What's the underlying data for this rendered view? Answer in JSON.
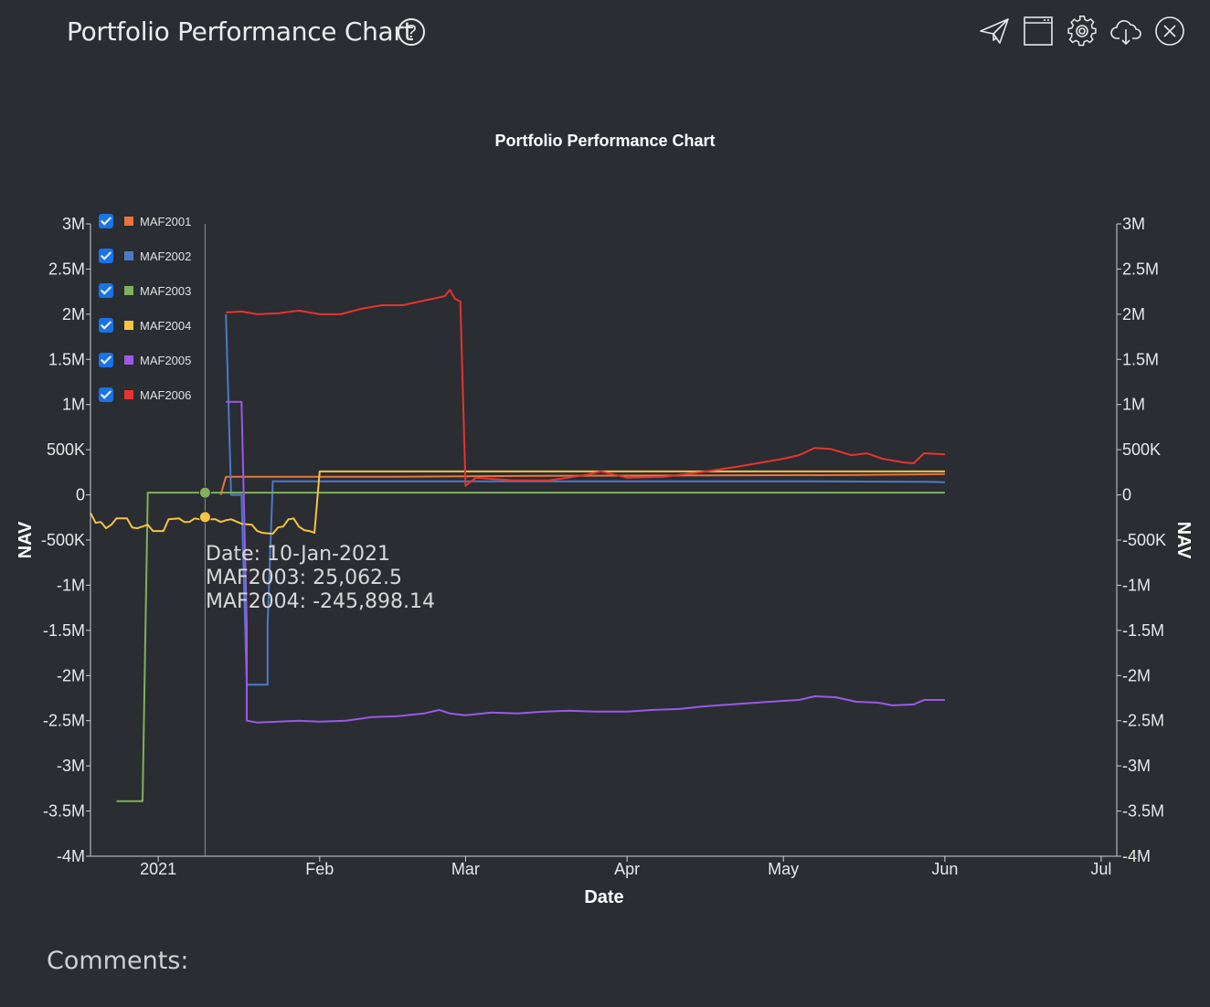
{
  "header": {
    "title": "Portfolio Performance Chart",
    "help_label": "?",
    "tools": [
      {
        "name": "send-icon"
      },
      {
        "name": "window-icon"
      },
      {
        "name": "gear-icon"
      },
      {
        "name": "cloud-download-icon"
      },
      {
        "name": "close-icon"
      }
    ]
  },
  "comments_label": "Comments:",
  "tooltip": {
    "date_line": "Date: 10-Jan-2021",
    "line1": "MAF2003: 25,062.5",
    "line2": "MAF2004: -245,898.14"
  },
  "chart_data": {
    "type": "line",
    "title": "Portfolio Performance Chart",
    "xlabel": "Date",
    "ylabel": "NAV",
    "y2label": "NAV",
    "xlim": [
      "2020-12-19",
      "2021-07-04"
    ],
    "ylim": [
      -4000000,
      3000000
    ],
    "x_ticks": [
      {
        "date": "2021-01-01",
        "label": "2021"
      },
      {
        "date": "2021-02-01",
        "label": "Feb"
      },
      {
        "date": "2021-03-01",
        "label": "Mar"
      },
      {
        "date": "2021-04-01",
        "label": "Apr"
      },
      {
        "date": "2021-05-01",
        "label": "May"
      },
      {
        "date": "2021-06-01",
        "label": "Jun"
      },
      {
        "date": "2021-07-01",
        "label": "Jul"
      }
    ],
    "y_ticks": [
      {
        "value": 3000000,
        "label": "3M"
      },
      {
        "value": 2500000,
        "label": "2.5M"
      },
      {
        "value": 2000000,
        "label": "2M"
      },
      {
        "value": 1500000,
        "label": "1.5M"
      },
      {
        "value": 1000000,
        "label": "1M"
      },
      {
        "value": 500000,
        "label": "500K"
      },
      {
        "value": 0,
        "label": "0"
      },
      {
        "value": -500000,
        "label": "-500K"
      },
      {
        "value": -1000000,
        "label": "-1M"
      },
      {
        "value": -1500000,
        "label": "-1.5M"
      },
      {
        "value": -2000000,
        "label": "-2M"
      },
      {
        "value": -2500000,
        "label": "-2.5M"
      },
      {
        "value": -3000000,
        "label": "-3M"
      },
      {
        "value": -3500000,
        "label": "-3.5M"
      },
      {
        "value": -4000000,
        "label": "-4M"
      }
    ],
    "hover_date": "2021-01-10",
    "series": [
      {
        "name": "MAF2001",
        "color": "#e8743b",
        "points": [
          [
            "2021-01-13",
            0
          ],
          [
            "2021-01-14",
            200000
          ],
          [
            "2021-02-15",
            200000
          ],
          [
            "2021-03-15",
            210000
          ],
          [
            "2021-04-15",
            215000
          ],
          [
            "2021-05-15",
            220000
          ],
          [
            "2021-06-01",
            230000
          ]
        ]
      },
      {
        "name": "MAF2002",
        "color": "#4e79c7",
        "points": [
          [
            "2021-01-14",
            2000000
          ],
          [
            "2021-01-15",
            0
          ],
          [
            "2021-01-17",
            0
          ],
          [
            "2021-01-18",
            -2100000
          ],
          [
            "2021-01-22",
            -2100000
          ],
          [
            "2021-01-22",
            -1450000
          ],
          [
            "2021-01-23",
            150000
          ],
          [
            "2021-03-01",
            150000
          ],
          [
            "2021-04-01",
            150000
          ],
          [
            "2021-05-01",
            150000
          ],
          [
            "2021-05-28",
            145000
          ],
          [
            "2021-06-01",
            140000
          ]
        ]
      },
      {
        "name": "MAF2003",
        "color": "#7fb05d",
        "points": [
          [
            "2020-12-24",
            -3390000
          ],
          [
            "2020-12-29",
            -3390000
          ],
          [
            "2020-12-30",
            25062.5
          ],
          [
            "2021-01-10",
            25062.5
          ],
          [
            "2021-02-01",
            25000
          ],
          [
            "2021-03-01",
            25000
          ],
          [
            "2021-04-01",
            25000
          ],
          [
            "2021-05-01",
            25000
          ],
          [
            "2021-06-01",
            25000
          ]
        ]
      },
      {
        "name": "MAF2004",
        "color": "#f7c343",
        "points": [
          [
            "2020-12-19",
            -200000
          ],
          [
            "2020-12-20",
            -310000
          ],
          [
            "2020-12-21",
            -300000
          ],
          [
            "2020-12-22",
            -370000
          ],
          [
            "2020-12-23",
            -330000
          ],
          [
            "2020-12-24",
            -260000
          ],
          [
            "2020-12-26",
            -260000
          ],
          [
            "2020-12-27",
            -360000
          ],
          [
            "2020-12-28",
            -370000
          ],
          [
            "2020-12-29",
            -350000
          ],
          [
            "2020-12-30",
            -330000
          ],
          [
            "2020-12-31",
            -400000
          ],
          [
            "2021-01-02",
            -400000
          ],
          [
            "2021-01-03",
            -270000
          ],
          [
            "2021-01-05",
            -260000
          ],
          [
            "2021-01-06",
            -300000
          ],
          [
            "2021-01-07",
            -300000
          ],
          [
            "2021-01-08",
            -260000
          ],
          [
            "2021-01-09",
            -270000
          ],
          [
            "2021-01-10",
            -245898.14
          ],
          [
            "2021-01-11",
            -270000
          ],
          [
            "2021-01-12",
            -270000
          ],
          [
            "2021-01-13",
            -300000
          ],
          [
            "2021-01-14",
            -280000
          ],
          [
            "2021-01-15",
            -270000
          ],
          [
            "2021-01-17",
            -320000
          ],
          [
            "2021-01-19",
            -330000
          ],
          [
            "2021-01-20",
            -400000
          ],
          [
            "2021-01-21",
            -420000
          ],
          [
            "2021-01-23",
            -430000
          ],
          [
            "2021-01-24",
            -360000
          ],
          [
            "2021-01-25",
            -350000
          ],
          [
            "2021-01-26",
            -270000
          ],
          [
            "2021-01-27",
            -260000
          ],
          [
            "2021-01-28",
            -350000
          ],
          [
            "2021-01-29",
            -390000
          ],
          [
            "2021-01-30",
            -400000
          ],
          [
            "2021-01-31",
            -420000
          ],
          [
            "2021-02-01",
            260000
          ],
          [
            "2021-03-01",
            260000
          ],
          [
            "2021-04-01",
            260000
          ],
          [
            "2021-05-01",
            260000
          ],
          [
            "2021-06-01",
            260000
          ]
        ]
      },
      {
        "name": "MAF2005",
        "color": "#9b59e8",
        "points": [
          [
            "2021-01-14",
            1030000
          ],
          [
            "2021-01-17",
            1030000
          ],
          [
            "2021-01-18",
            -1450000
          ],
          [
            "2021-01-18",
            -2500000
          ],
          [
            "2021-01-20",
            -2520000
          ],
          [
            "2021-01-24",
            -2510000
          ],
          [
            "2021-01-28",
            -2500000
          ],
          [
            "2021-02-01",
            -2510000
          ],
          [
            "2021-02-06",
            -2500000
          ],
          [
            "2021-02-11",
            -2460000
          ],
          [
            "2021-02-16",
            -2450000
          ],
          [
            "2021-02-21",
            -2420000
          ],
          [
            "2021-02-24",
            -2380000
          ],
          [
            "2021-02-26",
            -2420000
          ],
          [
            "2021-03-01",
            -2440000
          ],
          [
            "2021-03-06",
            -2410000
          ],
          [
            "2021-03-11",
            -2420000
          ],
          [
            "2021-03-16",
            -2400000
          ],
          [
            "2021-03-21",
            -2390000
          ],
          [
            "2021-03-26",
            -2400000
          ],
          [
            "2021-04-01",
            -2400000
          ],
          [
            "2021-04-06",
            -2380000
          ],
          [
            "2021-04-11",
            -2370000
          ],
          [
            "2021-04-16",
            -2340000
          ],
          [
            "2021-04-21",
            -2320000
          ],
          [
            "2021-04-26",
            -2300000
          ],
          [
            "2021-05-01",
            -2280000
          ],
          [
            "2021-05-04",
            -2270000
          ],
          [
            "2021-05-07",
            -2230000
          ],
          [
            "2021-05-11",
            -2240000
          ],
          [
            "2021-05-15",
            -2290000
          ],
          [
            "2021-05-19",
            -2300000
          ],
          [
            "2021-05-22",
            -2330000
          ],
          [
            "2021-05-26",
            -2320000
          ],
          [
            "2021-05-28",
            -2270000
          ],
          [
            "2021-06-01",
            -2270000
          ]
        ]
      },
      {
        "name": "MAF2006",
        "color": "#e8332f",
        "points": [
          [
            "2021-01-14",
            2020000
          ],
          [
            "2021-01-17",
            2030000
          ],
          [
            "2021-01-20",
            2000000
          ],
          [
            "2021-01-24",
            2010000
          ],
          [
            "2021-01-28",
            2040000
          ],
          [
            "2021-02-01",
            2000000
          ],
          [
            "2021-02-05",
            2000000
          ],
          [
            "2021-02-09",
            2060000
          ],
          [
            "2021-02-13",
            2100000
          ],
          [
            "2021-02-17",
            2100000
          ],
          [
            "2021-02-21",
            2150000
          ],
          [
            "2021-02-25",
            2200000
          ],
          [
            "2021-02-26",
            2270000
          ],
          [
            "2021-02-27",
            2170000
          ],
          [
            "2021-02-28",
            2140000
          ],
          [
            "2021-03-01",
            100000
          ],
          [
            "2021-03-03",
            190000
          ],
          [
            "2021-03-10",
            160000
          ],
          [
            "2021-03-17",
            160000
          ],
          [
            "2021-03-24",
            220000
          ],
          [
            "2021-03-27",
            260000
          ],
          [
            "2021-04-01",
            190000
          ],
          [
            "2021-04-08",
            200000
          ],
          [
            "2021-04-15",
            250000
          ],
          [
            "2021-04-22",
            310000
          ],
          [
            "2021-04-28",
            370000
          ],
          [
            "2021-05-01",
            400000
          ],
          [
            "2021-05-04",
            440000
          ],
          [
            "2021-05-07",
            520000
          ],
          [
            "2021-05-10",
            510000
          ],
          [
            "2021-05-14",
            440000
          ],
          [
            "2021-05-17",
            460000
          ],
          [
            "2021-05-20",
            400000
          ],
          [
            "2021-05-24",
            360000
          ],
          [
            "2021-05-26",
            350000
          ],
          [
            "2021-05-28",
            460000
          ],
          [
            "2021-06-01",
            450000
          ]
        ]
      }
    ]
  }
}
